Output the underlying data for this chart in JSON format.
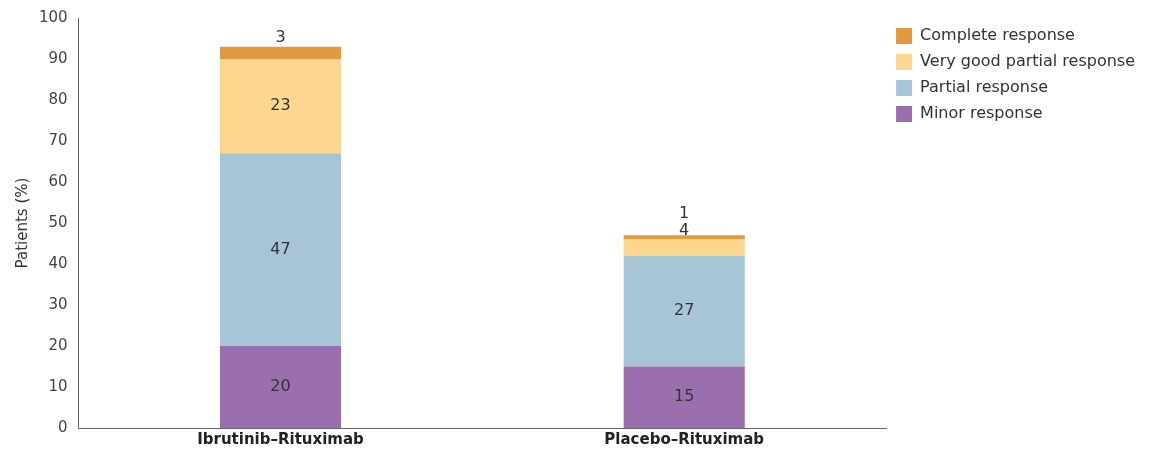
{
  "chart_data": {
    "type": "bar",
    "ylabel": "Patients (%)",
    "categories": [
      "Ibrutinib–Rituximab",
      "Placebo–Rituximab"
    ],
    "series": [
      {
        "name": "Minor response",
        "color": "#9a6fae",
        "values": [
          20,
          15
        ]
      },
      {
        "name": "Partial response",
        "color": "#a8c5d8",
        "values": [
          47,
          27
        ]
      },
      {
        "name": "Very good partial response",
        "color": "#fcd58f",
        "values": [
          23,
          4
        ]
      },
      {
        "name": "Complete response",
        "color": "#e29a3e",
        "values": [
          3,
          1
        ]
      }
    ],
    "stacked": true,
    "ylim": [
      0,
      100
    ],
    "yticks": [
      0,
      10,
      20,
      30,
      40,
      50,
      60,
      70,
      80,
      90,
      100
    ],
    "grid": false,
    "legend": "top right",
    "data_labels": true
  }
}
